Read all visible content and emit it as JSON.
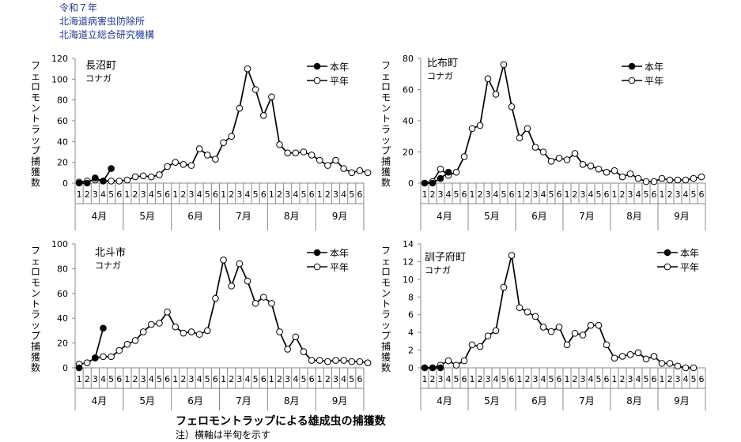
{
  "header": {
    "line1": "令和７年",
    "line2": "北海道病害虫防除所",
    "line3": "北海道立総合研究機構"
  },
  "footer": {
    "title": "フェロモントラップによる雄成虫の捕獲数",
    "note": "注）横軸は半旬を示す"
  },
  "chart_data": [
    {
      "type": "line",
      "location": "長沼町",
      "pest": "コナガ",
      "ylabel": "フェロモントラップ捕獲数",
      "ylim": [
        0,
        120
      ],
      "yticks": [
        0,
        20,
        40,
        60,
        80,
        100,
        120
      ],
      "months": [
        "4月",
        "5月",
        "6月",
        "7月",
        "8月",
        "9月"
      ],
      "pentads": [
        "1",
        "2",
        "3",
        "4",
        "5",
        "6"
      ],
      "legend_position": "top-right",
      "series": [
        {
          "name": "本年",
          "marker": "filled",
          "values": [
            0,
            0,
            5,
            2,
            14
          ]
        },
        {
          "name": "平年",
          "marker": "open",
          "values": [
            1,
            2,
            3,
            2,
            2,
            2,
            3,
            6,
            7,
            6,
            8,
            16,
            20,
            18,
            17,
            33,
            27,
            23,
            39,
            45,
            72,
            110,
            90,
            65,
            83,
            37,
            29,
            29,
            30,
            27,
            22,
            17,
            22,
            14,
            10,
            12,
            10
          ]
        }
      ]
    },
    {
      "type": "line",
      "location": "比布町",
      "pest": "コナガ",
      "ylabel": "フェロモントラップ捕獲数",
      "ylim": [
        0,
        80
      ],
      "yticks": [
        0,
        20,
        40,
        60,
        80
      ],
      "months": [
        "4月",
        "5月",
        "6月",
        "7月",
        "8月",
        "9月"
      ],
      "pentads": [
        "1",
        "2",
        "3",
        "4",
        "5",
        "6"
      ],
      "legend_position": "top-right",
      "series": [
        {
          "name": "本年",
          "marker": "filled",
          "values": [
            0,
            0,
            3,
            7
          ]
        },
        {
          "name": "平年",
          "marker": "open",
          "values": [
            0,
            1,
            9,
            5,
            7,
            17,
            35,
            37,
            67,
            57,
            76,
            49,
            29,
            35,
            23,
            20,
            14,
            16,
            15,
            19,
            12,
            11,
            9,
            7,
            8,
            4,
            6,
            3,
            1,
            1,
            3,
            2,
            2,
            2,
            3,
            4
          ]
        }
      ]
    },
    {
      "type": "line",
      "location": "北斗市",
      "pest": "コナガ",
      "ylabel": "フェロモントラップ捕獲数",
      "ylim": [
        0,
        100
      ],
      "yticks": [
        0,
        20,
        40,
        60,
        80,
        100
      ],
      "months": [
        "4月",
        "5月",
        "6月",
        "7月",
        "8月",
        "9月"
      ],
      "pentads": [
        "1",
        "2",
        "3",
        "4",
        "5",
        "6"
      ],
      "legend_position": "top-right",
      "series": [
        {
          "name": "本年",
          "marker": "filled",
          "values": [
            0,
            null,
            8,
            32
          ]
        },
        {
          "name": "平年",
          "marker": "open",
          "values": [
            3,
            4,
            8,
            9,
            9,
            14,
            19,
            22,
            29,
            35,
            36,
            45,
            33,
            28,
            29,
            27,
            30,
            56,
            87,
            66,
            84,
            70,
            52,
            57,
            52,
            29,
            15,
            25,
            13,
            6,
            6,
            5,
            6,
            6,
            5,
            5,
            4
          ]
        }
      ]
    },
    {
      "type": "line",
      "location": "訓子府町",
      "pest": "コナガ",
      "ylabel": "フェロモントラップ捕獲数",
      "ylim": [
        0,
        14
      ],
      "yticks": [
        0,
        2,
        4,
        6,
        8,
        10,
        12,
        14
      ],
      "months": [
        "4月",
        "5月",
        "6月",
        "7月",
        "8月",
        "9月"
      ],
      "pentads": [
        "1",
        "2",
        "3",
        "4",
        "5",
        "6"
      ],
      "legend_position": "top-right",
      "series": [
        {
          "name": "本年",
          "marker": "filled",
          "values": [
            0,
            0,
            0
          ]
        },
        {
          "name": "平年",
          "marker": "open",
          "values": [
            0,
            0,
            0.3,
            0.8,
            0.3,
            0.8,
            2.6,
            2.4,
            3.6,
            4.2,
            9.1,
            12.7,
            6.8,
            6.3,
            5.8,
            4.6,
            4.1,
            4.6,
            2.6,
            3.9,
            3.7,
            4.8,
            4.8,
            2.6,
            1.1,
            1.3,
            1.5,
            1.7,
            1.0,
            1.3,
            0.5,
            0.5,
            0.2,
            0,
            0
          ]
        }
      ]
    }
  ]
}
